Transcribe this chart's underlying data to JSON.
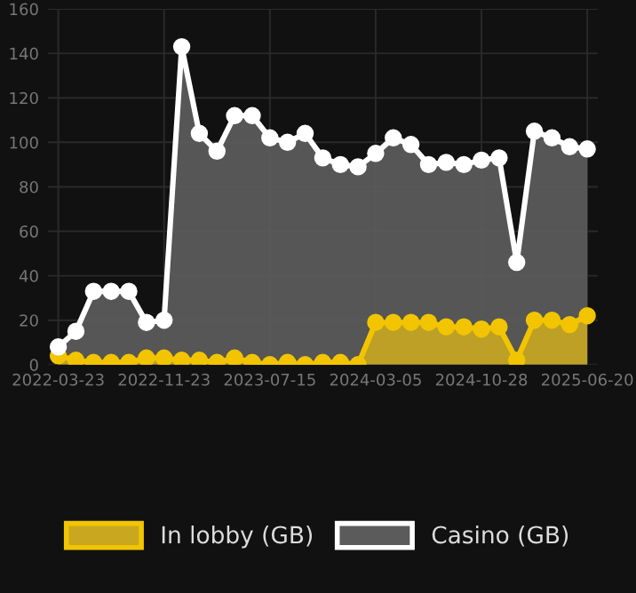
{
  "chart_data": {
    "type": "area",
    "categories": [
      "2022-03-23",
      null,
      null,
      null,
      null,
      null,
      "2022-11-23",
      null,
      null,
      null,
      null,
      null,
      "2023-07-15",
      null,
      null,
      null,
      null,
      null,
      "2024-03-05",
      null,
      null,
      null,
      null,
      null,
      "2024-10-28",
      null,
      null,
      null,
      null,
      null,
      "2025-06-20"
    ],
    "series": [
      {
        "name": "In lobby (GB)",
        "color": "#f2c500",
        "values": [
          4,
          2,
          1,
          1,
          1,
          3,
          3,
          2,
          2,
          1,
          3,
          1,
          0,
          1,
          0,
          1,
          1,
          0,
          19,
          19,
          19,
          19,
          17,
          17,
          16,
          17,
          2,
          20,
          20,
          18,
          22
        ]
      },
      {
        "name": "Casino (GB)",
        "color": "#ffffff",
        "values": [
          8,
          15,
          33,
          33,
          33,
          19,
          20,
          143,
          104,
          96,
          112,
          112,
          102,
          100,
          104,
          93,
          90,
          89,
          95,
          102,
          99,
          90,
          91,
          90,
          92,
          93,
          46,
          105,
          102,
          98,
          97
        ]
      }
    ],
    "ylim": [
      0,
      160
    ],
    "yticks": [
      0,
      20,
      40,
      60,
      80,
      100,
      120,
      140,
      160
    ],
    "grid": true,
    "legend": "bottom",
    "marker": "circle"
  }
}
